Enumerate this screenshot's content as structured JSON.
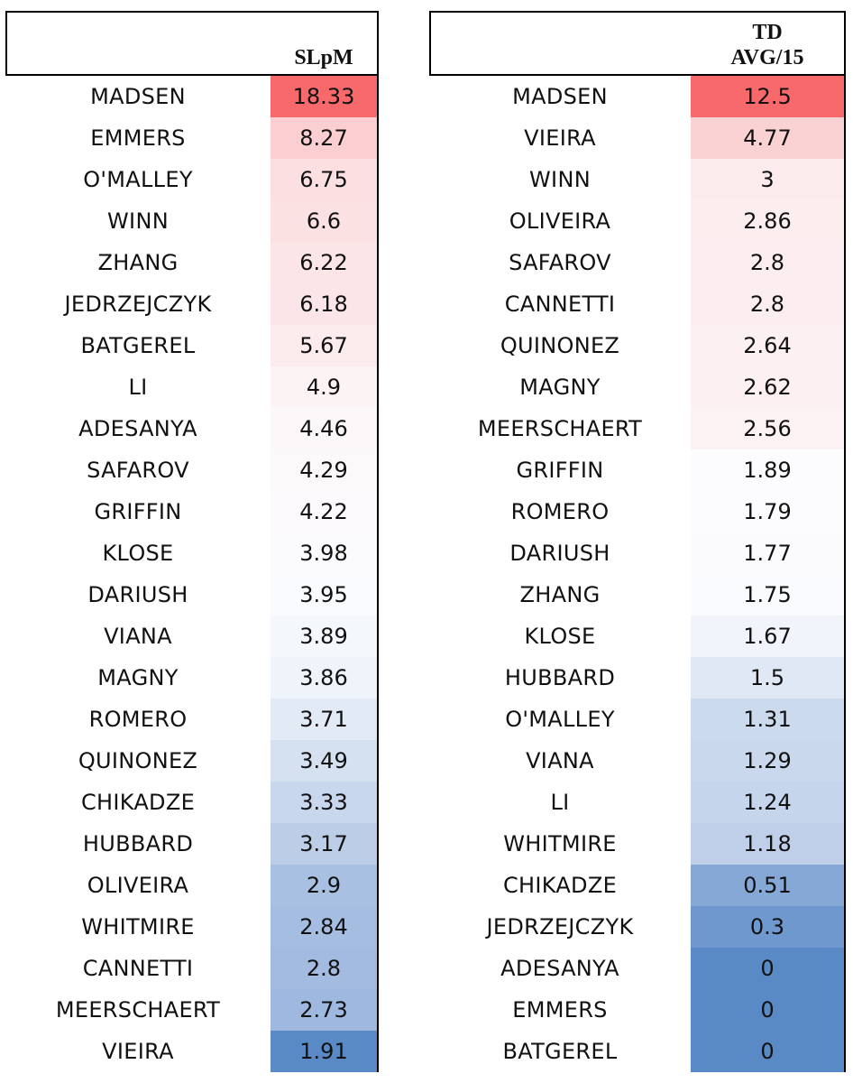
{
  "left": {
    "header": "SLpM",
    "rows": [
      {
        "name": "MADSEN",
        "value": "18.33",
        "color": "#f8696b"
      },
      {
        "name": "EMMERS",
        "value": "8.27",
        "color": "#fbcfd1"
      },
      {
        "name": "O'MALLEY",
        "value": "6.75",
        "color": "#fcdfe1"
      },
      {
        "name": "WINN",
        "value": "6.6",
        "color": "#fce1e3"
      },
      {
        "name": "ZHANG",
        "value": "6.22",
        "color": "#fce5e7"
      },
      {
        "name": "JEDRZEJCZYK",
        "value": "6.18",
        "color": "#fce5e8"
      },
      {
        "name": "BATGEREL",
        "value": "5.67",
        "color": "#fcebed"
      },
      {
        "name": "LI",
        "value": "4.9",
        "color": "#fcf3f5"
      },
      {
        "name": "ADESANYA",
        "value": "4.46",
        "color": "#fcf7f9"
      },
      {
        "name": "SAFAROV",
        "value": "4.29",
        "color": "#fcf9fb"
      },
      {
        "name": "GRIFFIN",
        "value": "4.22",
        "color": "#fcfafc"
      },
      {
        "name": "KLOSE",
        "value": "3.98",
        "color": "#fbfbfe"
      },
      {
        "name": "DARIUSH",
        "value": "3.95",
        "color": "#fafbfe"
      },
      {
        "name": "VIANA",
        "value": "3.89",
        "color": "#f4f7fc"
      },
      {
        "name": "MAGNY",
        "value": "3.86",
        "color": "#eff3fa"
      },
      {
        "name": "ROMERO",
        "value": "3.71",
        "color": "#e2eaf6"
      },
      {
        "name": "QUINONEZ",
        "value": "3.49",
        "color": "#d5e0f1"
      },
      {
        "name": "CHIKADZE",
        "value": "3.33",
        "color": "#c8d7ed"
      },
      {
        "name": "HUBBARD",
        "value": "3.17",
        "color": "#bccde8"
      },
      {
        "name": "OLIVEIRA",
        "value": "2.9",
        "color": "#a8c0e2"
      },
      {
        "name": "WHITMIRE",
        "value": "2.84",
        "color": "#a5bde1"
      },
      {
        "name": "CANNETTI",
        "value": "2.8",
        "color": "#a3bbe0"
      },
      {
        "name": "MEERSCHAERT",
        "value": "2.73",
        "color": "#9fb8df"
      },
      {
        "name": "VIEIRA",
        "value": "1.91",
        "color": "#5a8ac6"
      }
    ]
  },
  "right": {
    "header": "TD\nAVG/15",
    "rows": [
      {
        "name": "MADSEN",
        "value": "12.5",
        "color": "#f8696b"
      },
      {
        "name": "VIEIRA",
        "value": "4.77",
        "color": "#fbd2d4"
      },
      {
        "name": "WINN",
        "value": "3",
        "color": "#fcebed"
      },
      {
        "name": "OLIVEIRA",
        "value": "2.86",
        "color": "#fcedef"
      },
      {
        "name": "SAFAROV",
        "value": "2.8",
        "color": "#fceef0"
      },
      {
        "name": "CANNETTI",
        "value": "2.8",
        "color": "#fceef0"
      },
      {
        "name": "QUINONEZ",
        "value": "2.64",
        "color": "#fcf0f2"
      },
      {
        "name": "MAGNY",
        "value": "2.62",
        "color": "#fcf0f2"
      },
      {
        "name": "MEERSCHAERT",
        "value": "2.56",
        "color": "#fcf1f3"
      },
      {
        "name": "GRIFFIN",
        "value": "1.89",
        "color": "#fcfbfd"
      },
      {
        "name": "ROMERO",
        "value": "1.79",
        "color": "#fcfcfe"
      },
      {
        "name": "DARIUSH",
        "value": "1.77",
        "color": "#fbfbfe"
      },
      {
        "name": "ZHANG",
        "value": "1.75",
        "color": "#fafbfe"
      },
      {
        "name": "KLOSE",
        "value": "1.67",
        "color": "#f1f5fb"
      },
      {
        "name": "HUBBARD",
        "value": "1.5",
        "color": "#e0e8f5"
      },
      {
        "name": "O'MALLEY",
        "value": "1.31",
        "color": "#ccdaee"
      },
      {
        "name": "VIANA",
        "value": "1.29",
        "color": "#cad8ed"
      },
      {
        "name": "LI",
        "value": "1.24",
        "color": "#c5d5ec"
      },
      {
        "name": "WHITMIRE",
        "value": "1.18",
        "color": "#bfcfe9"
      },
      {
        "name": "CHIKADZE",
        "value": "0.51",
        "color": "#85a8d7"
      },
      {
        "name": "JEDRZEJCZYK",
        "value": "0.3",
        "color": "#6f99ce"
      },
      {
        "name": "ADESANYA",
        "value": "0",
        "color": "#5a8ac6"
      },
      {
        "name": "EMMERS",
        "value": "0",
        "color": "#5a8ac6"
      },
      {
        "name": "BATGEREL",
        "value": "0",
        "color": "#5a8ac6"
      }
    ]
  }
}
